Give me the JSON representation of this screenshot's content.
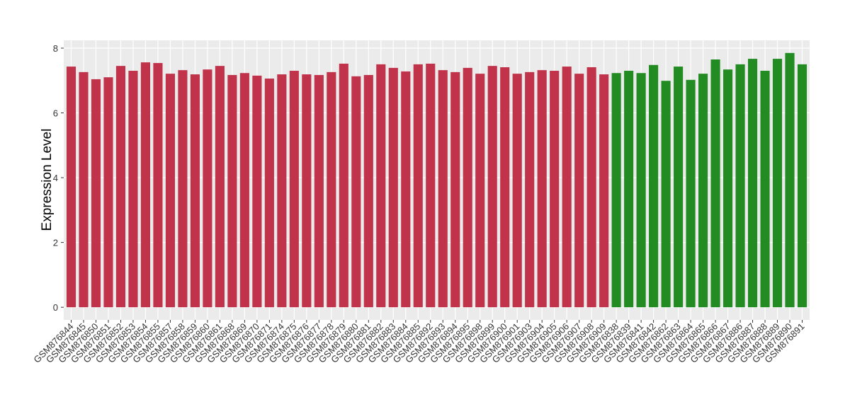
{
  "chart_data": {
    "type": "bar",
    "y_label": "Expression Level",
    "categories": [
      "GSM876844",
      "GSM876845",
      "GSM876850",
      "GSM876851",
      "GSM876852",
      "GSM876853",
      "GSM876854",
      "GSM876855",
      "GSM876857",
      "GSM876858",
      "GSM876859",
      "GSM876860",
      "GSM876861",
      "GSM876868",
      "GSM876869",
      "GSM876870",
      "GSM876871",
      "GSM876874",
      "GSM876875",
      "GSM876876",
      "GSM876877",
      "GSM876878",
      "GSM876879",
      "GSM876880",
      "GSM876881",
      "GSM876882",
      "GSM876883",
      "GSM876884",
      "GSM876885",
      "GSM876892",
      "GSM876893",
      "GSM876894",
      "GSM876895",
      "GSM876898",
      "GSM876899",
      "GSM876900",
      "GSM876901",
      "GSM876903",
      "GSM876904",
      "GSM876905",
      "GSM876906",
      "GSM876907",
      "GSM876908",
      "GSM876909",
      "GSM876838",
      "GSM876839",
      "GSM876841",
      "GSM876842",
      "GSM876862",
      "GSM876863",
      "GSM876864",
      "GSM876865",
      "GSM876866",
      "GSM876867",
      "GSM876886",
      "GSM876887",
      "GSM876888",
      "GSM876889",
      "GSM876890",
      "GSM876891"
    ],
    "values": [
      7.43,
      7.26,
      7.04,
      7.1,
      7.45,
      7.3,
      7.56,
      7.54,
      7.21,
      7.32,
      7.19,
      7.34,
      7.45,
      7.17,
      7.23,
      7.15,
      7.06,
      7.19,
      7.3,
      7.19,
      7.17,
      7.26,
      7.52,
      7.13,
      7.17,
      7.5,
      7.39,
      7.28,
      7.5,
      7.52,
      7.32,
      7.26,
      7.39,
      7.21,
      7.45,
      7.41,
      7.21,
      7.26,
      7.32,
      7.3,
      7.43,
      7.21,
      7.41,
      7.19,
      7.23,
      7.3,
      7.23,
      7.48,
      6.99,
      7.43,
      7.02,
      7.21,
      7.65,
      7.34,
      7.5,
      7.67,
      7.3,
      7.67,
      7.85,
      7.5
    ],
    "colors": [
      "#c0334a",
      "#c0334a",
      "#c0334a",
      "#c0334a",
      "#c0334a",
      "#c0334a",
      "#c0334a",
      "#c0334a",
      "#c0334a",
      "#c0334a",
      "#c0334a",
      "#c0334a",
      "#c0334a",
      "#c0334a",
      "#c0334a",
      "#c0334a",
      "#c0334a",
      "#c0334a",
      "#c0334a",
      "#c0334a",
      "#c0334a",
      "#c0334a",
      "#c0334a",
      "#c0334a",
      "#c0334a",
      "#c0334a",
      "#c0334a",
      "#c0334a",
      "#c0334a",
      "#c0334a",
      "#c0334a",
      "#c0334a",
      "#c0334a",
      "#c0334a",
      "#c0334a",
      "#c0334a",
      "#c0334a",
      "#c0334a",
      "#c0334a",
      "#c0334a",
      "#c0334a",
      "#c0334a",
      "#c0334a",
      "#c0334a",
      "#228b22",
      "#228b22",
      "#228b22",
      "#228b22",
      "#228b22",
      "#228b22",
      "#228b22",
      "#228b22",
      "#228b22",
      "#228b22",
      "#228b22",
      "#228b22",
      "#228b22",
      "#228b22",
      "#228b22",
      "#228b22"
    ],
    "ylim": [
      -0.39,
      8.24
    ],
    "yticks": [
      0,
      2,
      4,
      6,
      8
    ],
    "grid": true
  }
}
